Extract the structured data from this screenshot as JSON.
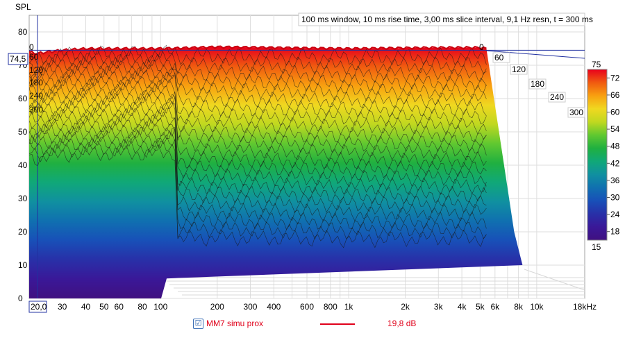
{
  "chart_data": {
    "type": "area",
    "title": "",
    "ylabel": "SPL",
    "xlabel": "",
    "x_scale": "log",
    "xlim": [
      20,
      18000
    ],
    "ylim": [
      0,
      85
    ],
    "y_ticks": [
      0,
      10,
      20,
      30,
      40,
      50,
      60,
      70,
      80
    ],
    "x_tick_labels": [
      {
        "f": 30,
        "label": "30"
      },
      {
        "f": 40,
        "label": "40"
      },
      {
        "f": 50,
        "label": "50"
      },
      {
        "f": 60,
        "label": "60"
      },
      {
        "f": 80,
        "label": "80"
      },
      {
        "f": 100,
        "label": "100"
      },
      {
        "f": 200,
        "label": "200"
      },
      {
        "f": 300,
        "label": "300"
      },
      {
        "f": 400,
        "label": "400"
      },
      {
        "f": 600,
        "label": "600"
      },
      {
        "f": 800,
        "label": "800"
      },
      {
        "f": 1000,
        "label": "1k"
      },
      {
        "f": 2000,
        "label": "2k"
      },
      {
        "f": 3000,
        "label": "3k"
      },
      {
        "f": 4000,
        "label": "4k"
      },
      {
        "f": 5000,
        "label": "5k"
      },
      {
        "f": 6000,
        "label": "6k"
      },
      {
        "f": 8000,
        "label": "8k"
      },
      {
        "f": 10000,
        "label": "10k"
      }
    ],
    "x_start_label": "20,0",
    "x_end_label": "18kHz",
    "y_cursor_label": "74,5",
    "y_cursor_value": 74.5,
    "info_text": "100 ms window, 10 ms rise time, 3,00 ms slice interval, 9,1 Hz resn, t = 300 ms",
    "time_axis_labels": [
      "0",
      "60",
      "120",
      "180",
      "240",
      "300"
    ],
    "time_axis_front_labels": [
      "0",
      "60",
      "120",
      "180",
      "240",
      "300"
    ],
    "time_axis_top_labels": [
      "0",
      "0"
    ],
    "colorbar": {
      "top_label": "75",
      "bottom_label": "15",
      "ticks": [
        "72",
        "66",
        "60",
        "54",
        "48",
        "42",
        "36",
        "30",
        "24",
        "18"
      ],
      "range": [
        15,
        75
      ],
      "colors": [
        "#e8001c",
        "#f05a10",
        "#f8a010",
        "#f0d820",
        "#c0d820",
        "#60c830",
        "#20b040",
        "#10a878",
        "#1090a0",
        "#1070b0",
        "#1850b8",
        "#2830a8",
        "#3a1898",
        "#401080"
      ]
    },
    "envelope": {
      "time_ms": 0,
      "freq": [
        20,
        22,
        25,
        30,
        40,
        60,
        100,
        200,
        400,
        1000,
        2000,
        3000,
        5000,
        5400
      ],
      "spl": [
        74,
        73.5,
        74,
        74.5,
        75,
        75,
        75,
        75.5,
        75.3,
        75,
        75.2,
        75.3,
        75.3,
        75
      ]
    },
    "legend": {
      "name": "MM7 simu prox",
      "value": "19,8 dB",
      "checked": "☑"
    }
  }
}
